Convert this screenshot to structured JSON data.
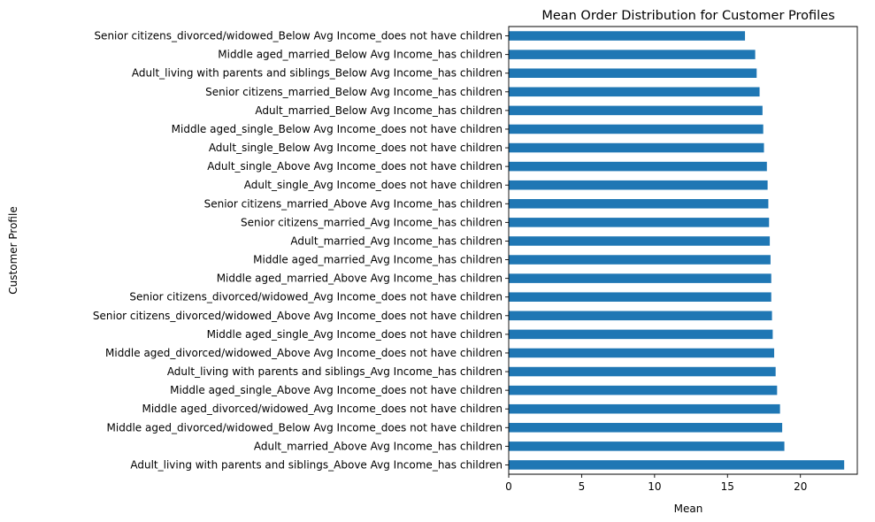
{
  "chart_data": {
    "type": "bar",
    "orientation": "horizontal",
    "title": "Mean Order Distribution for Customer Profiles",
    "xlabel": "Mean",
    "ylabel": "Customer Profile",
    "xlim": [
      0,
      23.9
    ],
    "xticks": [
      0,
      5,
      10,
      15,
      20
    ],
    "grid": false,
    "bar_color": "#1f77b4",
    "categories": [
      "Senior citizens_divorced/widowed_Below Avg Income_does not have children",
      "Middle aged_married_Below Avg Income_has children",
      "Adult_living with parents and siblings_Below Avg Income_has children",
      "Senior citizens_married_Below Avg Income_has children",
      "Adult_married_Below Avg Income_has children",
      "Middle aged_single_Below Avg Income_does not have children",
      "Adult_single_Below Avg Income_does not have children",
      "Adult_single_Above Avg Income_does not have children",
      "Adult_single_Avg Income_does not have children",
      "Senior citizens_married_Above Avg Income_has children",
      "Senior citizens_married_Avg Income_has children",
      "Adult_married_Avg Income_has children",
      "Middle aged_married_Avg Income_has children",
      "Middle aged_married_Above Avg Income_has children",
      "Senior citizens_divorced/widowed_Avg Income_does not have children",
      "Senior citizens_divorced/widowed_Above Avg Income_does not have children",
      "Middle aged_single_Avg Income_does not have children",
      "Middle aged_divorced/widowed_Above Avg Income_does not have children",
      "Adult_living with parents and siblings_Avg Income_has children",
      "Middle aged_single_Above Avg Income_does not have children",
      "Middle aged_divorced/widowed_Avg Income_does not have children",
      "Middle aged_divorced/widowed_Below Avg Income_does not have children",
      "Adult_married_Above Avg Income_has children",
      "Adult_living with parents and siblings_Above Avg Income_has children"
    ],
    "values": [
      16.2,
      16.9,
      17.0,
      17.2,
      17.4,
      17.45,
      17.5,
      17.7,
      17.75,
      17.8,
      17.85,
      17.9,
      17.95,
      18.0,
      18.0,
      18.05,
      18.1,
      18.2,
      18.3,
      18.4,
      18.6,
      18.75,
      18.9,
      23.0
    ]
  }
}
